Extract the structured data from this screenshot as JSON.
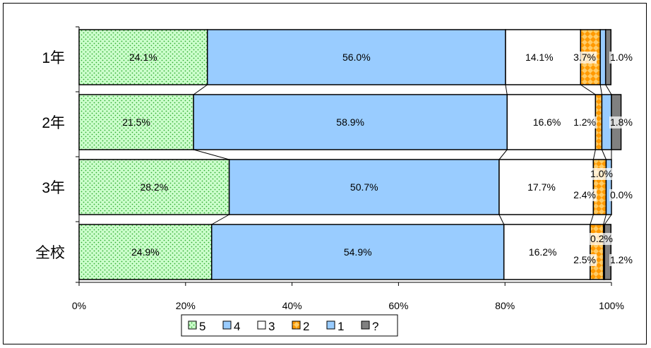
{
  "chart_data": {
    "type": "bar",
    "orientation": "horizontal",
    "stacked": "percent",
    "categories": [
      "1年",
      "2年",
      "3年",
      "全校"
    ],
    "series": [
      {
        "name": "5",
        "values": [
          24.1,
          21.5,
          28.2,
          24.9
        ],
        "color": "#ccffcc",
        "pattern": "dots-green"
      },
      {
        "name": "4",
        "values": [
          56.0,
          58.9,
          50.7,
          54.9
        ],
        "color": "#99ccff",
        "pattern": "solid"
      },
      {
        "name": "3",
        "values": [
          14.1,
          16.6,
          17.7,
          16.2
        ],
        "color": "#ffffff",
        "pattern": "solid"
      },
      {
        "name": "2",
        "values": [
          3.7,
          1.2,
          2.4,
          2.5
        ],
        "color": "#ffaa33",
        "pattern": "diamond-orange"
      },
      {
        "name": "1",
        "values": [
          1.0,
          1.8,
          1.0,
          0.2
        ],
        "color": "#99ccff",
        "pattern": "solid"
      },
      {
        "name": "?",
        "values": [
          1.0,
          1.8,
          0.0,
          1.2
        ],
        "color": "#808080",
        "pattern": "solid"
      }
    ],
    "data_labels": [
      [
        "24.1%",
        "56.0%",
        "14.1%",
        "3.7%",
        "",
        "1.0%"
      ],
      [
        "21.5%",
        "58.9%",
        "16.6%",
        "1.2%",
        "",
        "1.8%"
      ],
      [
        "28.2%",
        "50.7%",
        "17.7%",
        "2.4%",
        "1.0%",
        "0.0%"
      ],
      [
        "24.9%",
        "54.9%",
        "16.2%",
        "2.5%",
        "0.2%",
        "1.2%"
      ]
    ],
    "x_ticks": [
      "0%",
      "20%",
      "40%",
      "60%",
      "80%",
      "100%"
    ],
    "xlim": [
      0,
      100
    ],
    "legend_position": "bottom",
    "grid": false
  }
}
